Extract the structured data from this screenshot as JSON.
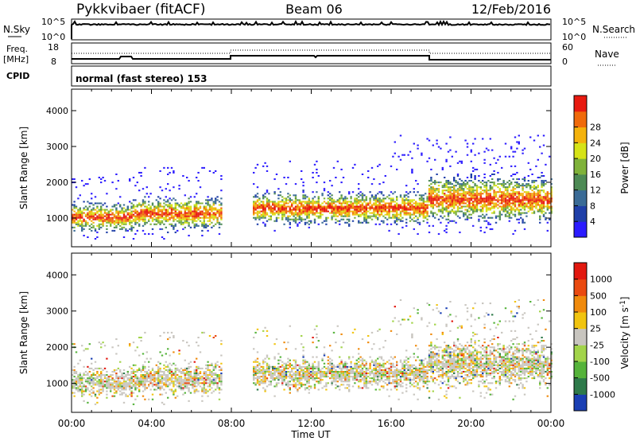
{
  "header": {
    "station": "Pykkvibaer (fitACF)",
    "beam": "Beam 06",
    "date": "12/Feb/2016"
  },
  "nsky_panel": {
    "left_label": "N.Sky",
    "right_label": "N.Search",
    "left_ticks": [
      "10^5",
      "10^0"
    ],
    "right_ticks": [
      "10^5",
      "10^0"
    ]
  },
  "freq_panel": {
    "left_label_1": "Freq.",
    "left_label_2": "[MHz]",
    "right_label": "Nave",
    "left_ticks": [
      "18",
      "8"
    ],
    "right_ticks": [
      "60",
      "0"
    ],
    "cpid_label": "CPID"
  },
  "cpid_text": "normal (fast stereo) 153",
  "x_axis": {
    "label": "Time UT",
    "ticks": [
      "00:00",
      "04:00",
      "08:00",
      "12:00",
      "16:00",
      "20:00",
      "00:00"
    ]
  },
  "chart_data": [
    {
      "type": "heatmap",
      "title": "",
      "xlabel": "Time UT",
      "ylabel": "Slant Range [km]",
      "x_range_hours": [
        0,
        24
      ],
      "ylim": [
        200,
        4600
      ],
      "y_ticks": [
        1000,
        2000,
        3000,
        4000
      ],
      "colorbar": {
        "label": "Power [dB]",
        "ticks": [
          "4",
          "8",
          "12",
          "16",
          "20",
          "24",
          "28"
        ],
        "colors": [
          "#2b1bff",
          "#1f3fa8",
          "#3a6b96",
          "#4d8a55",
          "#7fb23a",
          "#d6e317",
          "#f4b20c",
          "#f06a0a",
          "#e81a10"
        ]
      }
    },
    {
      "type": "heatmap",
      "title": "",
      "xlabel": "Time UT",
      "ylabel": "Slant Range [km]",
      "x_range_hours": [
        0,
        24
      ],
      "ylim": [
        200,
        4600
      ],
      "y_ticks": [
        1000,
        2000,
        3000,
        4000
      ],
      "colorbar": {
        "label": "Velocity [m s^-1]",
        "ticks": [
          "1000",
          "500",
          "100",
          "25",
          "-25",
          "-100",
          "-500",
          "-1000"
        ],
        "colors": [
          "#1a3fb4",
          "#2e7a4a",
          "#55b33a",
          "#a2d44a",
          "#c8c5bf",
          "#f1c40f",
          "#f08a0c",
          "#ea4a10",
          "#e2180f"
        ]
      }
    }
  ],
  "colors": {
    "axis": "#000000",
    "ground_scatter": "#c8c5bf"
  }
}
